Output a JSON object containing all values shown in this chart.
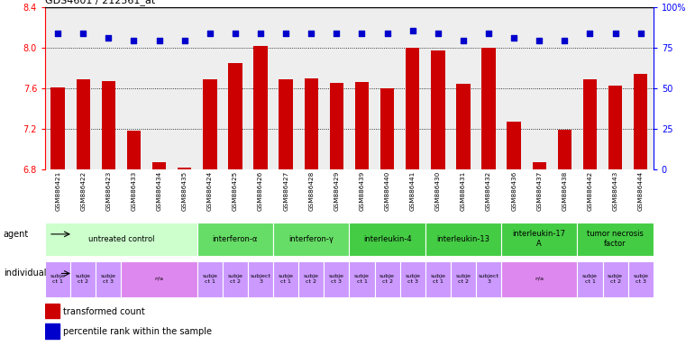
{
  "title": "GDS4601 / 212561_at",
  "samples": [
    "GSM886421",
    "GSM886422",
    "GSM886423",
    "GSM886433",
    "GSM886434",
    "GSM886435",
    "GSM886424",
    "GSM886425",
    "GSM886426",
    "GSM886427",
    "GSM886428",
    "GSM886429",
    "GSM886439",
    "GSM886440",
    "GSM886441",
    "GSM886430",
    "GSM886431",
    "GSM886432",
    "GSM886436",
    "GSM886437",
    "GSM886438",
    "GSM886442",
    "GSM886443",
    "GSM886444"
  ],
  "bar_values": [
    7.61,
    7.69,
    7.67,
    7.18,
    6.87,
    6.82,
    7.69,
    7.85,
    8.02,
    7.69,
    7.7,
    7.65,
    7.66,
    7.6,
    8.0,
    7.97,
    7.64,
    8.0,
    7.27,
    6.87,
    7.19,
    7.69,
    7.63,
    7.74
  ],
  "dot_values": [
    8.14,
    8.14,
    8.1,
    8.07,
    8.07,
    8.07,
    8.14,
    8.14,
    8.14,
    8.14,
    8.14,
    8.14,
    8.14,
    8.14,
    8.17,
    8.14,
    8.07,
    8.14,
    8.1,
    8.07,
    8.07,
    8.14,
    8.14,
    8.14
  ],
  "ylim": [
    6.8,
    8.4
  ],
  "yticks_left": [
    6.8,
    7.2,
    7.6,
    8.0,
    8.4
  ],
  "yticks_right": [
    0,
    25,
    50,
    75,
    100
  ],
  "ytick_labels_right": [
    "0",
    "25",
    "50",
    "75",
    "100%"
  ],
  "bar_color": "#cc0000",
  "dot_color": "#0000cc",
  "plot_bg_color": "#eeeeee",
  "xtick_bg_color": "#c8c8c8",
  "agent_groups": [
    {
      "label": "untreated control",
      "start": 0,
      "end": 5,
      "color": "#ccffcc"
    },
    {
      "label": "interferon-α",
      "start": 6,
      "end": 8,
      "color": "#66dd66"
    },
    {
      "label": "interferon-γ",
      "start": 9,
      "end": 11,
      "color": "#66dd66"
    },
    {
      "label": "interleukin-4",
      "start": 12,
      "end": 14,
      "color": "#44cc44"
    },
    {
      "label": "interleukin-13",
      "start": 15,
      "end": 17,
      "color": "#44cc44"
    },
    {
      "label": "interleukin-17\nA",
      "start": 18,
      "end": 20,
      "color": "#44cc44"
    },
    {
      "label": "tumor necrosis\nfactor",
      "start": 21,
      "end": 23,
      "color": "#44cc44"
    }
  ],
  "individual_groups": [
    {
      "label": "subje\nct 1",
      "start": 0,
      "end": 0,
      "color": "#cc99ff"
    },
    {
      "label": "subje\nct 2",
      "start": 1,
      "end": 1,
      "color": "#cc99ff"
    },
    {
      "label": "subje\nct 3",
      "start": 2,
      "end": 2,
      "color": "#cc99ff"
    },
    {
      "label": "n/a",
      "start": 3,
      "end": 5,
      "color": "#dd88ee"
    },
    {
      "label": "subje\nct 1",
      "start": 6,
      "end": 6,
      "color": "#cc99ff"
    },
    {
      "label": "subje\nct 2",
      "start": 7,
      "end": 7,
      "color": "#cc99ff"
    },
    {
      "label": "subject\n3",
      "start": 8,
      "end": 8,
      "color": "#cc99ff"
    },
    {
      "label": "subje\nct 1",
      "start": 9,
      "end": 9,
      "color": "#cc99ff"
    },
    {
      "label": "subje\nct 2",
      "start": 10,
      "end": 10,
      "color": "#cc99ff"
    },
    {
      "label": "subje\nct 3",
      "start": 11,
      "end": 11,
      "color": "#cc99ff"
    },
    {
      "label": "subje\nct 1",
      "start": 12,
      "end": 12,
      "color": "#cc99ff"
    },
    {
      "label": "subje\nct 2",
      "start": 13,
      "end": 13,
      "color": "#cc99ff"
    },
    {
      "label": "subje\nct 3",
      "start": 14,
      "end": 14,
      "color": "#cc99ff"
    },
    {
      "label": "subje\nct 1",
      "start": 15,
      "end": 15,
      "color": "#cc99ff"
    },
    {
      "label": "subje\nct 2",
      "start": 16,
      "end": 16,
      "color": "#cc99ff"
    },
    {
      "label": "subject\n3",
      "start": 17,
      "end": 17,
      "color": "#cc99ff"
    },
    {
      "label": "n/a",
      "start": 18,
      "end": 20,
      "color": "#dd88ee"
    },
    {
      "label": "subje\nct 1",
      "start": 21,
      "end": 21,
      "color": "#cc99ff"
    },
    {
      "label": "subje\nct 2",
      "start": 22,
      "end": 22,
      "color": "#cc99ff"
    },
    {
      "label": "subje\nct 3",
      "start": 23,
      "end": 23,
      "color": "#cc99ff"
    }
  ],
  "fig_width": 7.71,
  "fig_height": 3.84,
  "dpi": 100
}
